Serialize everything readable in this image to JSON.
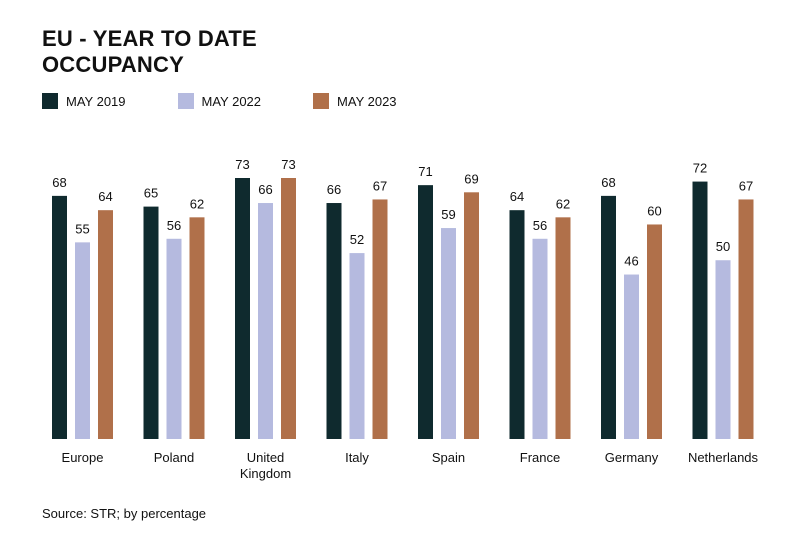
{
  "chart_data": {
    "type": "bar",
    "title_lines": [
      "EU - YEAR TO DATE",
      "OCCUPANCY"
    ],
    "categories": [
      [
        "Europe"
      ],
      [
        "Poland"
      ],
      [
        "United",
        "Kingdom"
      ],
      [
        "Italy"
      ],
      [
        "Spain"
      ],
      [
        "France"
      ],
      [
        "Germany"
      ],
      [
        "Netherlands"
      ]
    ],
    "series": [
      {
        "name": "MAY 2019",
        "color": "#0f2a2e",
        "values": [
          68,
          65,
          73,
          66,
          71,
          64,
          68,
          72
        ]
      },
      {
        "name": "MAY 2022",
        "color": "#b5badf",
        "values": [
          55,
          56,
          66,
          52,
          59,
          56,
          46,
          50
        ]
      },
      {
        "name": "MAY 2023",
        "color": "#b0704a",
        "values": [
          64,
          62,
          73,
          67,
          69,
          62,
          60,
          67
        ]
      }
    ],
    "ylim": [
      0,
      73
    ],
    "xlabel": "",
    "ylabel": "",
    "grid": false,
    "legend": "top-left",
    "source": "Source: STR; by percentage"
  }
}
